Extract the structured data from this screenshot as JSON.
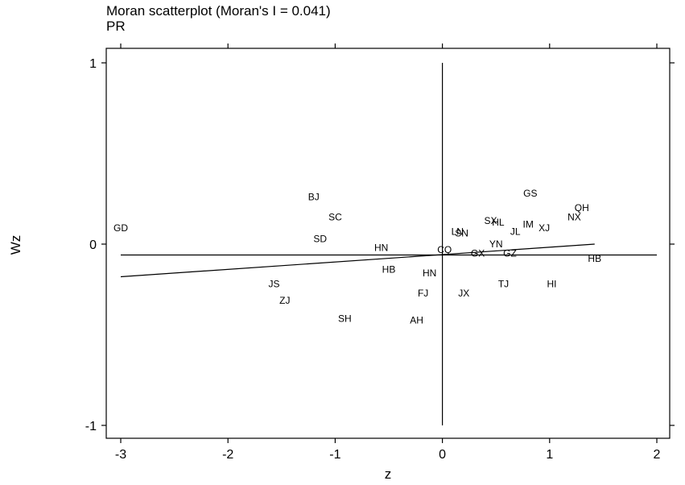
{
  "header": {
    "title": "Moran scatterplot (Moran's I = 0.041)",
    "subtitle": "PR"
  },
  "chart_data": {
    "type": "scatter",
    "title": "Moran scatterplot (Moran's I = 0.041)",
    "subtitle": "PR",
    "xlabel": "z",
    "ylabel": "Wz",
    "xlim": [
      -3.0,
      2.0
    ],
    "ylim": [
      -1.0,
      1.0
    ],
    "x_ticks": [
      -3,
      -2,
      -1,
      0,
      1,
      2
    ],
    "y_ticks": [
      -1,
      0,
      1
    ],
    "x_tick_labels": [
      "-3",
      "-2",
      "-1",
      "0",
      "1",
      "2"
    ],
    "y_tick_labels": [
      "-1",
      "0",
      "1"
    ],
    "grid": false,
    "points": [
      {
        "label": "GD",
        "x": -3.0,
        "y": 0.09
      },
      {
        "label": "BJ",
        "x": -1.2,
        "y": 0.26
      },
      {
        "label": "SC",
        "x": -1.0,
        "y": 0.15
      },
      {
        "label": "SD",
        "x": -1.14,
        "y": 0.03
      },
      {
        "label": "HN",
        "x": -0.57,
        "y": -0.02
      },
      {
        "label": "HB",
        "x": -0.5,
        "y": -0.14
      },
      {
        "label": "JS",
        "x": -1.57,
        "y": -0.22
      },
      {
        "label": "ZJ",
        "x": -1.47,
        "y": -0.31
      },
      {
        "label": "SH",
        "x": -0.91,
        "y": -0.41
      },
      {
        "label": "HN",
        "x": -0.12,
        "y": -0.16
      },
      {
        "label": "FJ",
        "x": -0.18,
        "y": -0.27
      },
      {
        "label": "AH",
        "x": -0.24,
        "y": -0.42
      },
      {
        "label": "CQ",
        "x": 0.02,
        "y": -0.03
      },
      {
        "label": "LN",
        "x": 0.14,
        "y": 0.07
      },
      {
        "label": "SN",
        "x": 0.18,
        "y": 0.06
      },
      {
        "label": "SX",
        "x": 0.45,
        "y": 0.13
      },
      {
        "label": "HL",
        "x": 0.52,
        "y": 0.12
      },
      {
        "label": "JL",
        "x": 0.68,
        "y": 0.07
      },
      {
        "label": "IM",
        "x": 0.8,
        "y": 0.11
      },
      {
        "label": "XJ",
        "x": 0.95,
        "y": 0.09
      },
      {
        "label": "GS",
        "x": 0.82,
        "y": 0.28
      },
      {
        "label": "QH",
        "x": 1.3,
        "y": 0.2
      },
      {
        "label": "NX",
        "x": 1.23,
        "y": 0.15
      },
      {
        "label": "YN",
        "x": 0.5,
        "y": 0.0
      },
      {
        "label": "GX",
        "x": 0.33,
        "y": -0.05
      },
      {
        "label": "GZ",
        "x": 0.63,
        "y": -0.05
      },
      {
        "label": "HB",
        "x": 1.42,
        "y": -0.08
      },
      {
        "label": "TJ",
        "x": 0.57,
        "y": -0.22
      },
      {
        "label": "HI",
        "x": 1.02,
        "y": -0.22
      },
      {
        "label": "JX",
        "x": 0.2,
        "y": -0.27
      }
    ],
    "reference_lines": {
      "horizontal_mean_y": -0.06,
      "vertical_mean_x": 0.0
    },
    "fit_line": {
      "x": [
        -3.0,
        1.42
      ],
      "y": [
        -0.18,
        0.0
      ]
    }
  }
}
